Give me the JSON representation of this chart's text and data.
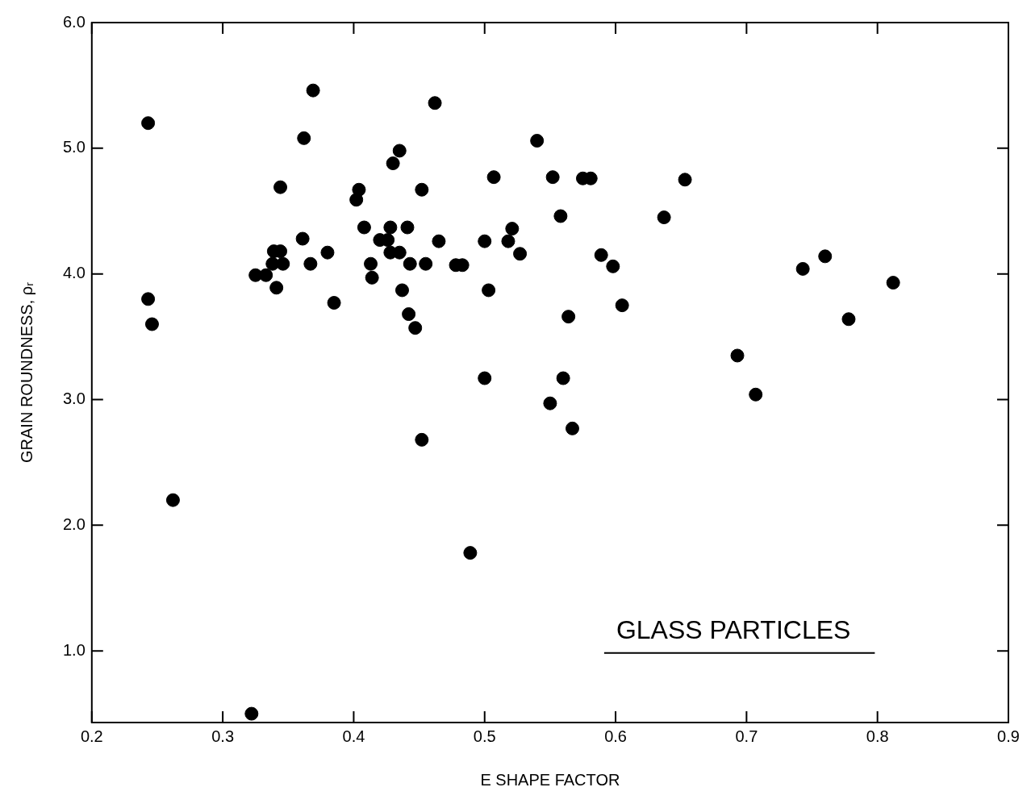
{
  "chart_data": {
    "type": "scatter",
    "xlabel": "E SHAPE FACTOR",
    "ylabel": "GRAIN ROUNDNESS, ρᵣ",
    "annotations": [
      "GLASS PARTICLES"
    ],
    "xlim": [
      0.2,
      0.9
    ],
    "xticks": [
      0.2,
      0.3,
      0.4,
      0.5,
      0.6,
      0.7,
      0.8,
      0.9
    ],
    "ylim": [
      0.43,
      6.0
    ],
    "yticks": [
      {
        "value": 1,
        "label": "1.0"
      },
      {
        "value": 2,
        "label": "2.0"
      },
      {
        "value": 3,
        "label": "3.0"
      },
      {
        "value": 4,
        "label": "4.0"
      },
      {
        "value": 5,
        "label": "5.0"
      },
      {
        "value": 6,
        "label": "6.0"
      }
    ],
    "grid": false,
    "legend": false,
    "marker": "circle",
    "series": [
      {
        "color": "#000000",
        "x": [
          0.243,
          0.243,
          0.246,
          0.262,
          0.322,
          0.325,
          0.333,
          0.341,
          0.339,
          0.344,
          0.338,
          0.346,
          0.344,
          0.361,
          0.362,
          0.369,
          0.367,
          0.38,
          0.385,
          0.402,
          0.404,
          0.408,
          0.413,
          0.414,
          0.42,
          0.426,
          0.428,
          0.435,
          0.428,
          0.43,
          0.435,
          0.441,
          0.437,
          0.442,
          0.443,
          0.447,
          0.452,
          0.455,
          0.452,
          0.462,
          0.465,
          0.478,
          0.483,
          0.489,
          0.5,
          0.5,
          0.503,
          0.507,
          0.518,
          0.521,
          0.527,
          0.54,
          0.55,
          0.552,
          0.558,
          0.56,
          0.564,
          0.567,
          0.575,
          0.581,
          0.589,
          0.598,
          0.605,
          0.637,
          0.653,
          0.693,
          0.707,
          0.743,
          0.76,
          0.778,
          0.812
        ],
        "values": [
          5.2,
          3.8,
          3.6,
          2.2,
          0.5,
          3.99,
          3.99,
          3.89,
          4.18,
          4.18,
          4.08,
          4.08,
          4.69,
          4.28,
          5.08,
          5.46,
          4.08,
          4.17,
          3.77,
          4.59,
          4.67,
          4.37,
          4.08,
          3.97,
          4.27,
          4.27,
          4.17,
          4.17,
          4.37,
          4.88,
          4.98,
          4.37,
          3.87,
          3.68,
          4.08,
          3.57,
          4.67,
          4.08,
          2.68,
          5.36,
          4.26,
          4.07,
          4.07,
          1.78,
          4.26,
          3.17,
          3.87,
          4.77,
          4.26,
          4.36,
          4.16,
          5.06,
          2.97,
          4.77,
          4.46,
          3.17,
          3.66,
          2.77,
          4.76,
          4.76,
          4.15,
          4.06,
          3.75,
          4.45,
          4.75,
          3.35,
          3.04,
          4.04,
          4.14,
          3.64,
          3.93
        ]
      }
    ]
  }
}
